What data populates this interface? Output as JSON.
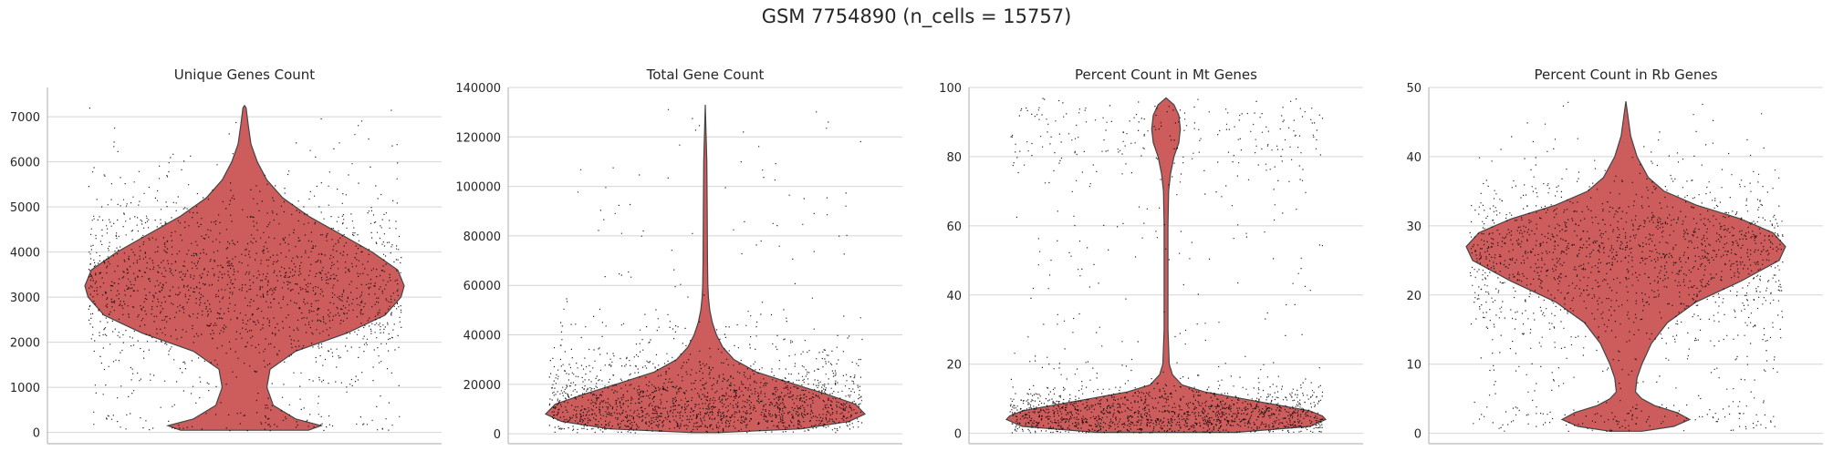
{
  "figure": {
    "suptitle": "GSM 7754890 (n_cells = 15757)"
  },
  "colors": {
    "violin_fill": "#cd5c5c",
    "points": "#000000",
    "grid": "#d4d4d4",
    "axes": "#bbbbbb"
  },
  "chart_data": [
    {
      "type": "violin",
      "title": "Unique Genes Count",
      "ylim": [
        -250,
        7650
      ],
      "yticks": [
        0,
        1000,
        2000,
        3000,
        4000,
        5000,
        6000,
        7000
      ],
      "ytick_labels": [
        "0",
        "1000",
        "2000",
        "3000",
        "4000",
        "5000",
        "6000",
        "7000"
      ],
      "grid": true,
      "jitter_points": true,
      "distribution": {
        "y": [
          50,
          150,
          300,
          600,
          1000,
          1400,
          1800,
          2200,
          2600,
          3000,
          3250,
          3600,
          4000,
          4400,
          4800,
          5200,
          5600,
          6000,
          6400,
          6800,
          7200,
          7250
        ],
        "half_width": [
          0.2,
          0.24,
          0.16,
          0.09,
          0.07,
          0.08,
          0.16,
          0.32,
          0.44,
          0.49,
          0.5,
          0.48,
          0.4,
          0.3,
          0.2,
          0.12,
          0.07,
          0.04,
          0.02,
          0.012,
          0.005,
          0.0
        ]
      }
    },
    {
      "type": "violin",
      "title": "Total Gene Count",
      "ylim": [
        -4000,
        140000
      ],
      "yticks": [
        0,
        20000,
        40000,
        60000,
        80000,
        100000,
        120000,
        140000
      ],
      "ytick_labels": [
        "0",
        "20000",
        "40000",
        "60000",
        "80000",
        "100000",
        "120000",
        "140000"
      ],
      "grid": true,
      "jitter_points": true,
      "distribution": {
        "y": [
          500,
          2000,
          5000,
          8000,
          12000,
          16000,
          20000,
          25000,
          30000,
          35000,
          40000,
          45000,
          50000,
          55000,
          60000,
          70000,
          90000,
          110000,
          133000
        ],
        "half_width": [
          0.04,
          0.3,
          0.45,
          0.5,
          0.47,
          0.38,
          0.28,
          0.16,
          0.09,
          0.055,
          0.035,
          0.022,
          0.014,
          0.01,
          0.008,
          0.007,
          0.006,
          0.005,
          0.0
        ]
      }
    },
    {
      "type": "violin",
      "title": "Percent Count in Mt Genes",
      "ylim": [
        -3,
        100
      ],
      "yticks": [
        0,
        20,
        40,
        60,
        80,
        100
      ],
      "ytick_labels": [
        "0",
        "20",
        "40",
        "60",
        "80",
        "100"
      ],
      "grid": true,
      "jitter_points": true,
      "distribution": {
        "y": [
          0.3,
          2,
          4,
          5,
          6.5,
          8,
          10,
          12,
          14,
          17,
          20,
          30,
          45,
          60,
          70,
          75,
          80,
          84,
          88,
          92,
          95,
          97
        ],
        "half_width": [
          0.22,
          0.45,
          0.5,
          0.49,
          0.45,
          0.36,
          0.24,
          0.12,
          0.05,
          0.02,
          0.01,
          0.006,
          0.006,
          0.006,
          0.008,
          0.014,
          0.025,
          0.04,
          0.045,
          0.04,
          0.025,
          0.0
        ]
      }
    },
    {
      "type": "violin",
      "title": "Percent Count in Rb Genes",
      "ylim": [
        -1.5,
        50
      ],
      "yticks": [
        0,
        10,
        20,
        30,
        40,
        50
      ],
      "ytick_labels": [
        "0",
        "10",
        "20",
        "30",
        "40",
        "50"
      ],
      "grid": true,
      "jitter_points": true,
      "distribution": {
        "y": [
          0.3,
          1,
          2,
          3,
          4,
          5,
          6,
          8,
          10,
          13,
          16,
          19,
          22,
          25,
          27,
          29,
          31,
          33,
          35,
          37,
          40,
          43,
          48
        ],
        "half_width": [
          0.05,
          0.15,
          0.2,
          0.16,
          0.09,
          0.05,
          0.03,
          0.035,
          0.05,
          0.08,
          0.13,
          0.22,
          0.36,
          0.48,
          0.5,
          0.46,
          0.36,
          0.22,
          0.12,
          0.07,
          0.035,
          0.015,
          0.0
        ]
      }
    }
  ]
}
